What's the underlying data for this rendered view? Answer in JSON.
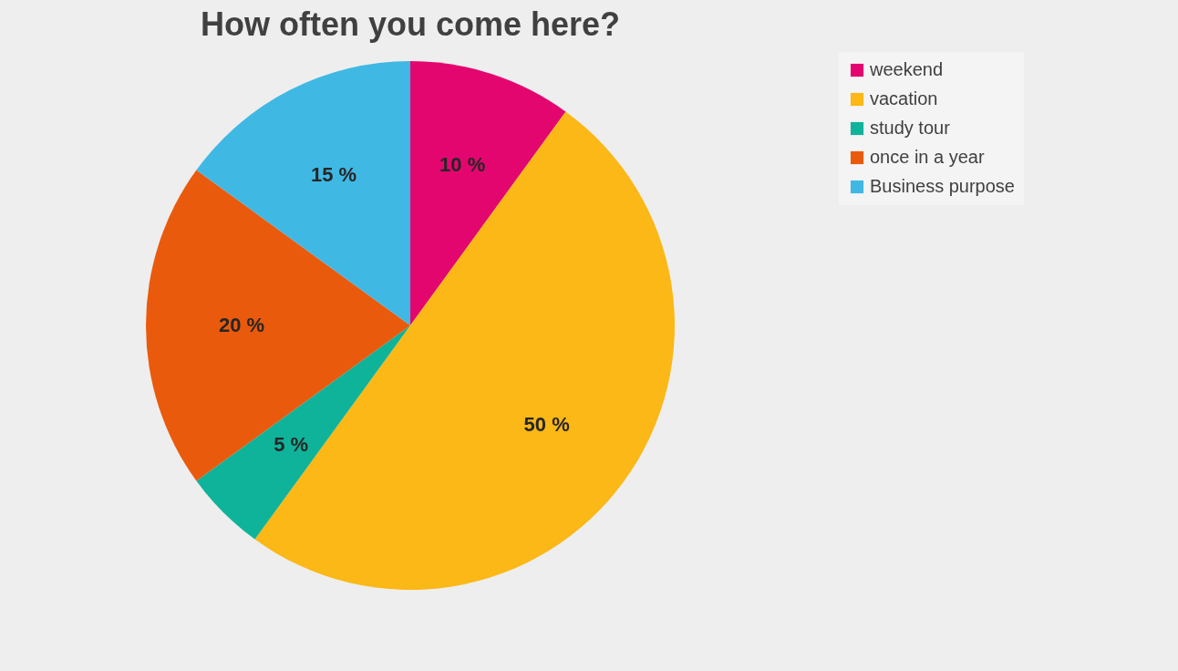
{
  "chart_data": {
    "type": "pie",
    "title": "How often you come here?",
    "categories": [
      "weekend",
      "vacation",
      "study tour",
      "once in a year",
      "Business purpose"
    ],
    "values": [
      10,
      50,
      5,
      20,
      15
    ],
    "value_labels": [
      "10 %",
      "50 %",
      "5 %",
      "20 %",
      "15 %"
    ],
    "colors": [
      "#e4066f",
      "#fbb816",
      "#0fb39a",
      "#ea5a0c",
      "#40b8e4"
    ],
    "legend": "right"
  }
}
